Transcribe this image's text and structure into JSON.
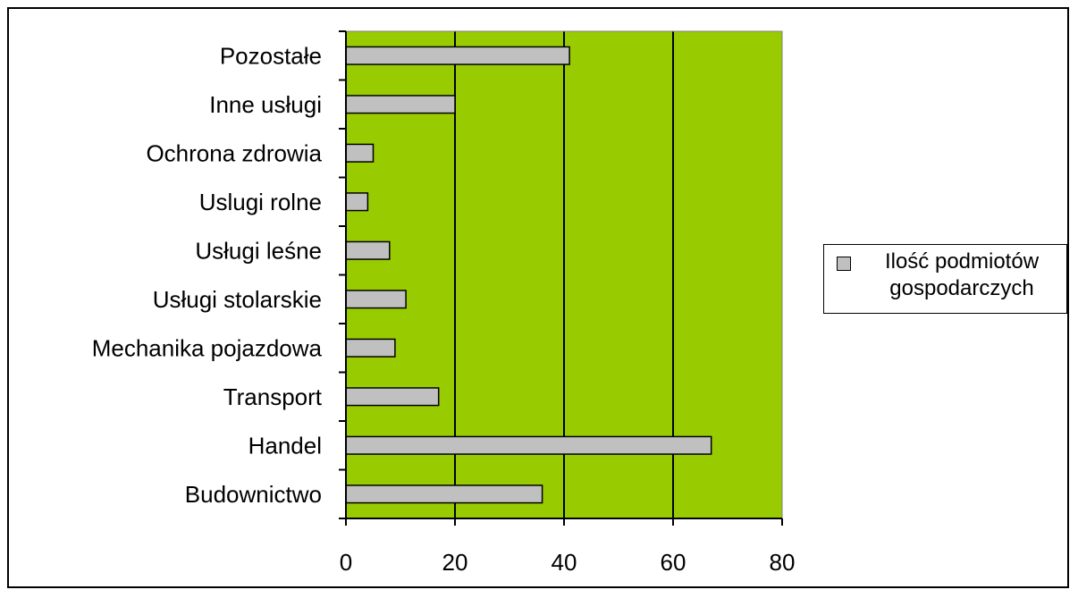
{
  "chart_data": {
    "type": "bar",
    "orientation": "horizontal",
    "categories": [
      "Budownictwo",
      "Handel",
      "Transport",
      "Mechanika pojazdowa",
      "Usługi stolarskie",
      "Usługi leśne",
      "Uslugi rolne",
      "Ochrona zdrowia",
      "Inne usługi ",
      "Pozostałe"
    ],
    "series": [
      {
        "name": "Ilość podmiotów gospodarczych",
        "values": [
          36,
          67,
          17,
          9,
          11,
          8,
          4,
          5,
          20,
          41
        ]
      }
    ],
    "xlim": [
      0,
      80
    ],
    "xticks": [
      0,
      20,
      40,
      60,
      80
    ],
    "grid": true,
    "legend": "right",
    "colors": {
      "plot_background": "#99CC00",
      "bar_fill": "#C0C0C0",
      "bar_stroke": "#000000",
      "gridline": "#000000"
    }
  }
}
